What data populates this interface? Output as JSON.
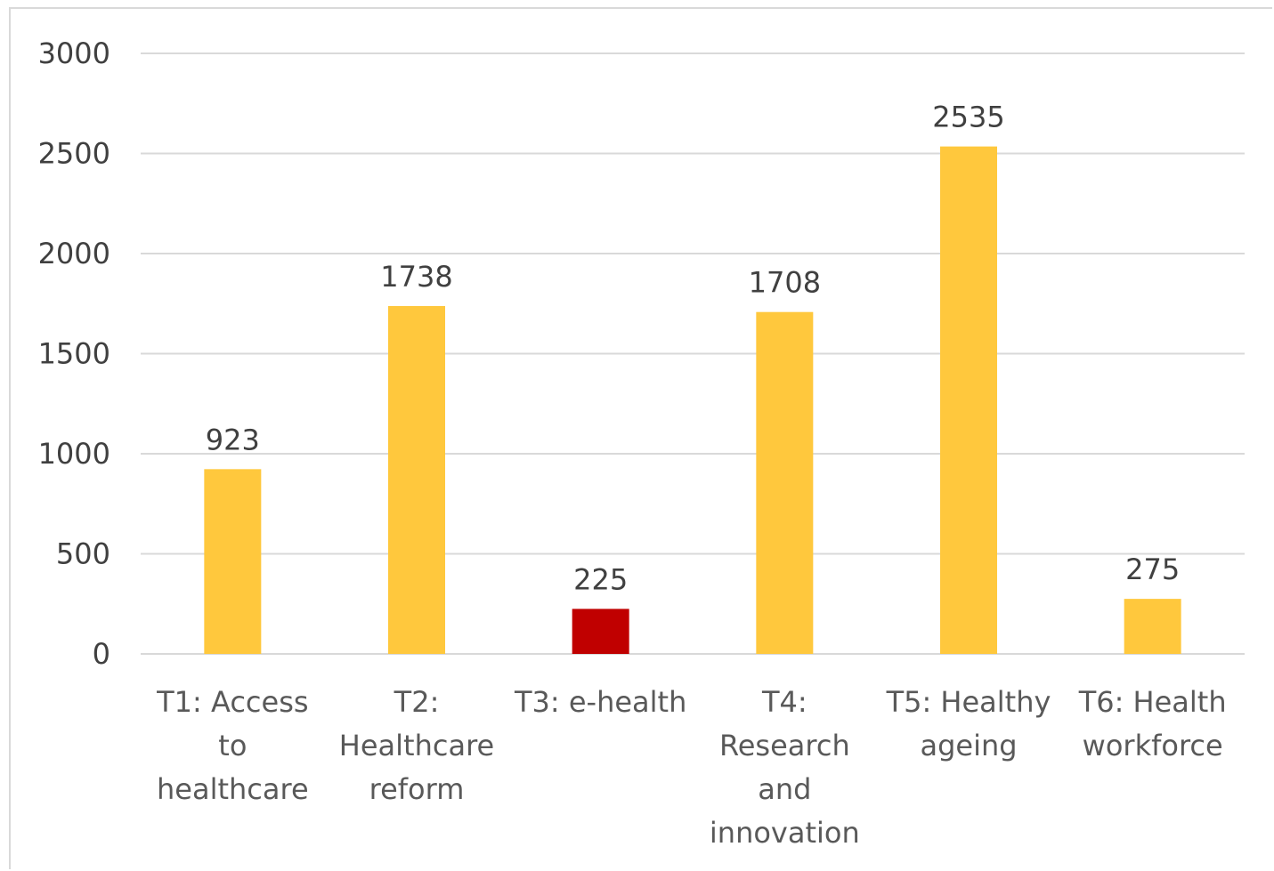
{
  "chart_data": {
    "type": "bar",
    "categories": [
      "T1: Access to healthcare",
      "T2: Healthcare reform",
      "T3: e-health",
      "T4: Research and innovation",
      "T5: Healthy ageing",
      "T6: Health workforce"
    ],
    "category_lines": [
      [
        "T1: Access",
        "to",
        "healthcare"
      ],
      [
        "T2:",
        "Healthcare",
        "reform"
      ],
      [
        "T3: e-health"
      ],
      [
        "T4:",
        "Research",
        "and",
        "innovation"
      ],
      [
        "T5: Healthy",
        "ageing"
      ],
      [
        "T6: Health",
        "workforce"
      ]
    ],
    "values": [
      923,
      1738,
      225,
      1708,
      2535,
      275
    ],
    "data_labels": [
      "923",
      "1738",
      "225",
      "1708",
      "2535",
      "275"
    ],
    "bar_colors": [
      "#ffc83d",
      "#ffc83d",
      "#c00000",
      "#ffc83d",
      "#ffc83d",
      "#ffc83d"
    ],
    "ylim": [
      0,
      3000
    ],
    "yticks": [
      0,
      500,
      1000,
      1500,
      2000,
      2500,
      3000
    ],
    "ytick_labels": [
      "0",
      "500",
      "1000",
      "1500",
      "2000",
      "2500",
      "3000"
    ],
    "grid": true,
    "gridline_color": "#d9d9d9",
    "title": "",
    "xlabel": "",
    "ylabel": ""
  }
}
